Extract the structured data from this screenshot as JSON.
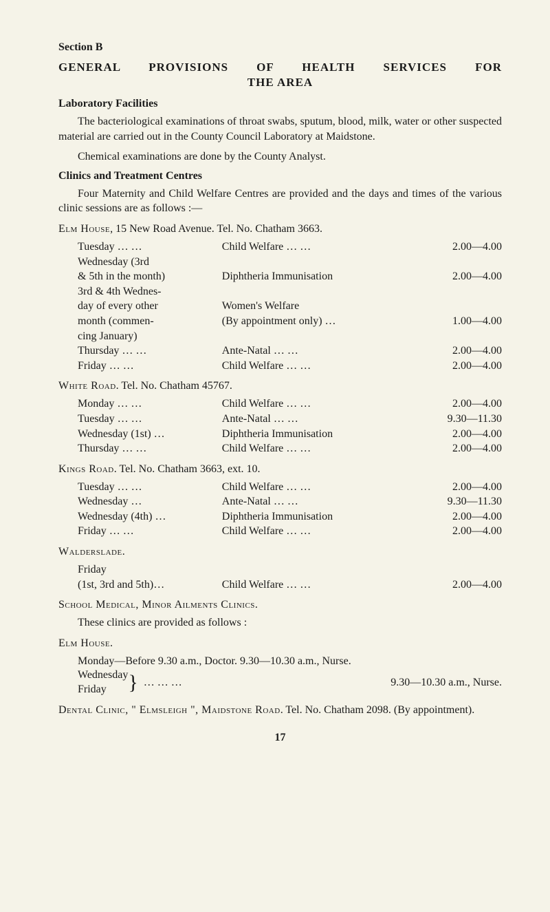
{
  "section_label": "Section B",
  "title_line1": "GENERAL PROVISIONS OF HEALTH SERVICES FOR",
  "title_line2": "THE AREA",
  "lab_heading": "Laboratory Facilities",
  "lab_para1": "The bacteriological examinations of throat swabs, sputum, blood, milk, water or other suspected material are carried out in the County Council Laboratory at Maidstone.",
  "lab_para2": "Chemical examinations are done by the County Analyst.",
  "clinics_heading": "Clinics and Treatment Centres",
  "clinics_para": "Four Maternity and Child Welfare Centres are provided and the days and times of the various clinic sessions are as follows :—",
  "centres": [
    {
      "name_sc": "Elm House",
      "name_tail": ", 15 New Road Avenue. Tel. No. Chatham 3663.",
      "rows": [
        {
          "a": "Tuesday … …",
          "b": "Child Welfare       …     …",
          "c": "2.00—4.00"
        },
        {
          "a": "Wednesday (3rd",
          "b": "",
          "c": ""
        },
        {
          "a": "& 5th in the month)",
          "b": "Diphtheria Immunisation",
          "c": "2.00—4.00"
        },
        {
          "a": "3rd & 4th Wednes-",
          "b": "",
          "c": ""
        },
        {
          "a": "day of every other",
          "b": "Women's Welfare",
          "c": ""
        },
        {
          "a": "month    (commen-",
          "b": "(By appointment only) …",
          "c": "1.00—4.00"
        },
        {
          "a": "cing January)",
          "b": "",
          "c": ""
        },
        {
          "a": "Thursday …   …",
          "b": "Ante-Natal          …     …",
          "c": "2.00—4.00"
        },
        {
          "a": "Friday       …   …",
          "b": "Child Welfare       …     …",
          "c": "2.00—4.00"
        }
      ]
    },
    {
      "name_sc": "White Road",
      "name_tail": ". Tel. No. Chatham 45767.",
      "rows": [
        {
          "a": "Monday  …   …",
          "b": "Child Welfare       …     …",
          "c": "2.00—4.00"
        },
        {
          "a": "Tuesday  …   …",
          "b": "Ante-Natal          …     …",
          "c": "9.30—11.30"
        },
        {
          "a": "Wednesday (1st) …",
          "b": "Diphtheria Immunisation",
          "c": "2.00—4.00"
        },
        {
          "a": "Thursday …   …",
          "b": "Child Welfare       …     …",
          "c": "2.00—4.00"
        }
      ]
    },
    {
      "name_sc": "Kings Road",
      "name_tail": ". Tel. No. Chatham 3663, ext. 10.",
      "rows": [
        {
          "a": "Tuesday …    …",
          "b": "Child Welfare       …     …",
          "c": "2.00—4.00"
        },
        {
          "a": "Wednesday       …",
          "b": "Ante-Natal          …     …",
          "c": "9.30—11.30"
        },
        {
          "a": "Wednesday (4th) …",
          "b": "Diphtheria Immunisation",
          "c": "2.00—4.00"
        },
        {
          "a": "Friday       …   …",
          "b": "Child Welfare       …     …",
          "c": "2.00—4.00"
        }
      ]
    },
    {
      "name_sc": "Walderslade",
      "name_tail": ".",
      "rows": [
        {
          "a": "Friday",
          "b": "",
          "c": ""
        },
        {
          "a": "(1st, 3rd and 5th)…",
          "b": "Child Welfare       …     …",
          "c": "2.00—4.00"
        }
      ]
    }
  ],
  "school_heading_sc": "School Medical, Minor Ailments Clinics.",
  "school_sub": "These clinics are provided as follows :",
  "elm_house_sc": "Elm House.",
  "elm_monday": "Monday—Before 9.30 a.m., Doctor.  9.30—10.30 a.m., Nurse.",
  "brace_day1": "Wednesday",
  "brace_day2": "Friday",
  "brace_dots": "…      …      …",
  "brace_right": "9.30—10.30 a.m., Nurse.",
  "dental_line1_a": "Dental Clinic, ",
  "dental_line1_b": "\" Elmsleigh \", Maidstone Road",
  "dental_line1_c": ". Tel. No. Chatham 2098. (By appointment).",
  "page_number": "17"
}
